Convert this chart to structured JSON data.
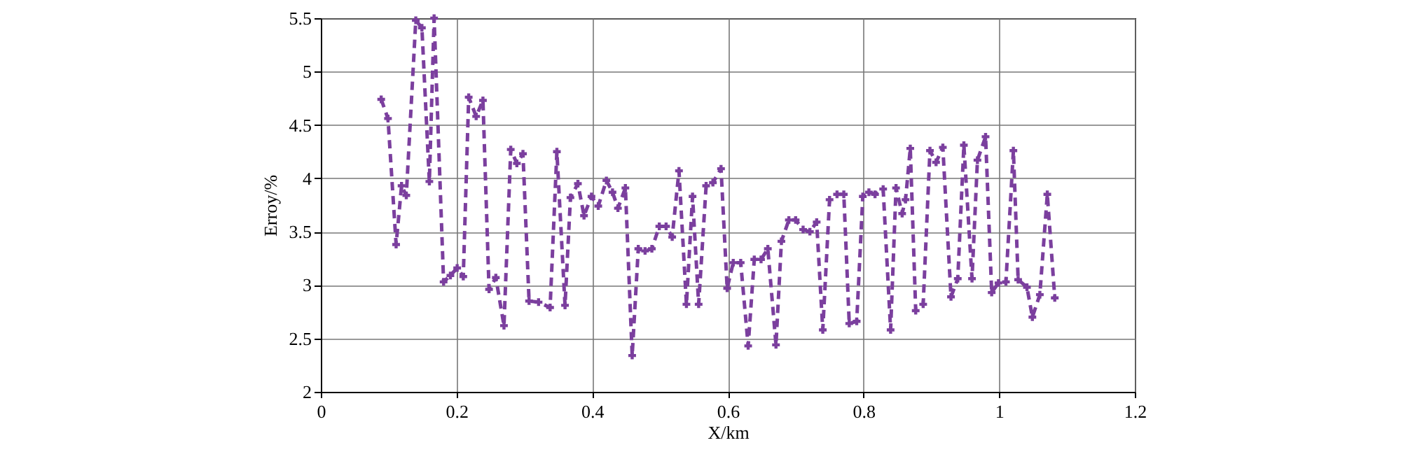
{
  "chart_data": {
    "type": "line",
    "xlabel": "X/km",
    "ylabel": "Erroy/%",
    "xlim": [
      0,
      1.2
    ],
    "xticks": [
      0,
      0.2,
      0.4,
      0.6,
      0.8,
      1,
      1.2
    ],
    "ylim": [
      2,
      5.5
    ],
    "yticks": [
      2,
      2.5,
      3,
      3.5,
      4,
      4.5,
      5,
      5.5
    ],
    "grid": true,
    "marker": "cross",
    "line_style": "dashed",
    "series": [
      {
        "color": "#7b3f9e",
        "x": [
          0.089,
          0.099,
          0.111,
          0.119,
          0.126,
          0.14,
          0.149,
          0.16,
          0.167,
          0.181,
          0.191,
          0.201,
          0.21,
          0.218,
          0.229,
          0.239,
          0.248,
          0.258,
          0.27,
          0.28,
          0.289,
          0.298,
          0.307,
          0.321,
          0.338,
          0.348,
          0.36,
          0.368,
          0.379,
          0.388,
          0.399,
          0.409,
          0.421,
          0.43,
          0.438,
          0.449,
          0.459,
          0.468,
          0.478,
          0.488,
          0.499,
          0.509,
          0.518,
          0.528,
          0.539,
          0.548,
          0.557,
          0.568,
          0.578,
          0.59,
          0.599,
          0.608,
          0.619,
          0.63,
          0.639,
          0.649,
          0.659,
          0.671,
          0.679,
          0.69,
          0.7,
          0.711,
          0.721,
          0.731,
          0.74,
          0.75,
          0.761,
          0.771,
          0.779,
          0.79,
          0.799,
          0.808,
          0.817,
          0.829,
          0.84,
          0.848,
          0.857,
          0.862,
          0.869,
          0.877,
          0.888,
          0.898,
          0.907,
          0.917,
          0.929,
          0.939,
          0.948,
          0.96,
          0.968,
          0.98,
          0.989,
          0.999,
          1.01,
          1.021,
          1.028,
          1.041,
          1.049,
          1.06,
          1.071,
          1.082
        ],
        "values": [
          4.74,
          4.56,
          3.38,
          3.93,
          3.84,
          5.48,
          5.41,
          3.97,
          5.5,
          3.03,
          3.09,
          3.16,
          3.08,
          4.76,
          4.58,
          4.73,
          2.96,
          3.07,
          2.62,
          4.27,
          4.14,
          4.23,
          2.85,
          2.84,
          2.79,
          4.25,
          2.81,
          3.82,
          3.95,
          3.65,
          3.83,
          3.74,
          3.98,
          3.87,
          3.72,
          3.91,
          2.34,
          3.34,
          3.32,
          3.34,
          3.55,
          3.55,
          3.45,
          4.07,
          2.82,
          3.83,
          2.82,
          3.93,
          3.96,
          4.09,
          2.97,
          3.21,
          3.21,
          2.43,
          3.24,
          3.24,
          3.34,
          2.44,
          3.41,
          3.61,
          3.61,
          3.52,
          3.5,
          3.59,
          2.58,
          3.8,
          3.85,
          3.85,
          2.64,
          2.66,
          3.83,
          3.87,
          3.85,
          3.9,
          2.58,
          3.91,
          3.67,
          3.8,
          4.28,
          2.76,
          2.82,
          4.26,
          4.15,
          4.29,
          2.89,
          3.06,
          4.31,
          3.06,
          4.17,
          4.39,
          2.93,
          3.02,
          3.03,
          4.26,
          3.05,
          2.98,
          2.7,
          2.91,
          3.85,
          2.88
        ]
      }
    ]
  }
}
